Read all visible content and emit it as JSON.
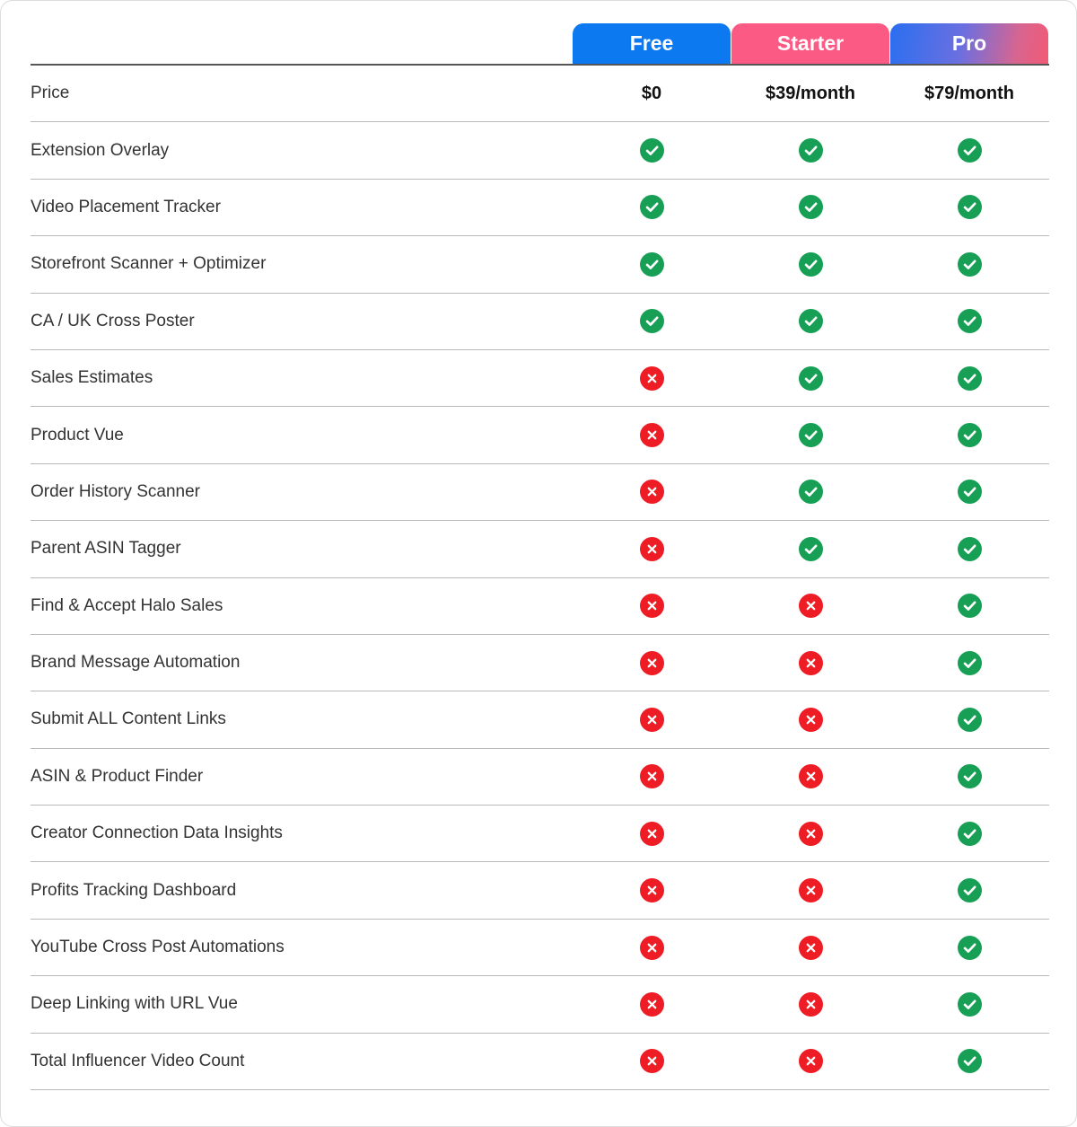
{
  "plans": [
    {
      "name": "Free",
      "background": "#0d79f0"
    },
    {
      "name": "Starter",
      "background": "#fb5a85"
    },
    {
      "name": "Pro",
      "background": "linear-gradient(100deg, #2a6ff0 0%, #6b6fe0 45%, #d8658f 80%, #f25a75 100%)"
    }
  ],
  "colors": {
    "check": "#17a055",
    "cross": "#ee1c24",
    "divider": "#b9b9b9",
    "header_rule": "#555555"
  },
  "icons": {
    "included": "check-circle-icon",
    "excluded": "x-circle-icon"
  },
  "price_row": {
    "label": "Price",
    "values": [
      "$0",
      "$39/month",
      "$79/month"
    ]
  },
  "features": [
    {
      "label": "Extension Overlay",
      "included": [
        true,
        true,
        true
      ]
    },
    {
      "label": "Video Placement Tracker",
      "included": [
        true,
        true,
        true
      ]
    },
    {
      "label": "Storefront Scanner + Optimizer",
      "included": [
        true,
        true,
        true
      ]
    },
    {
      "label": "CA / UK Cross Poster",
      "included": [
        true,
        true,
        true
      ]
    },
    {
      "label": "Sales Estimates",
      "included": [
        false,
        true,
        true
      ]
    },
    {
      "label": "Product Vue",
      "included": [
        false,
        true,
        true
      ]
    },
    {
      "label": "Order History Scanner",
      "included": [
        false,
        true,
        true
      ]
    },
    {
      "label": "Parent ASIN Tagger",
      "included": [
        false,
        true,
        true
      ]
    },
    {
      "label": "Find & Accept Halo Sales",
      "included": [
        false,
        false,
        true
      ]
    },
    {
      "label": "Brand Message Automation",
      "included": [
        false,
        false,
        true
      ]
    },
    {
      "label": "Submit ALL Content Links",
      "included": [
        false,
        false,
        true
      ]
    },
    {
      "label": "ASIN & Product Finder",
      "included": [
        false,
        false,
        true
      ]
    },
    {
      "label": "Creator Connection Data Insights",
      "included": [
        false,
        false,
        true
      ]
    },
    {
      "label": "Profits Tracking Dashboard",
      "included": [
        false,
        false,
        true
      ]
    },
    {
      "label": "YouTube Cross Post Automations",
      "included": [
        false,
        false,
        true
      ]
    },
    {
      "label": "Deep Linking with URL Vue",
      "included": [
        false,
        false,
        true
      ]
    },
    {
      "label": "Total Influencer Video Count",
      "included": [
        false,
        false,
        true
      ]
    }
  ]
}
